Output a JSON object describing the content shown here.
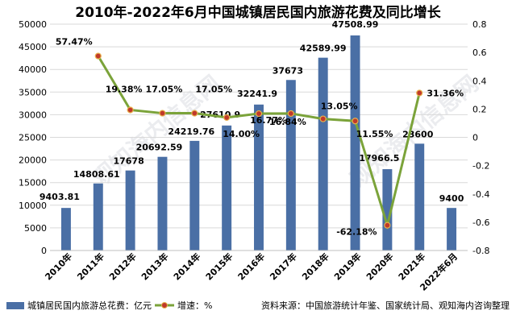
{
  "chart_data": {
    "type": "bar",
    "title": "2010年-2022年6月中国城镇居民国内旅游花费及同比增长",
    "categories": [
      "2010年",
      "2011年",
      "2012年",
      "2013年",
      "2014年",
      "2015年",
      "2016年",
      "2017年",
      "2018年",
      "2019年",
      "2020年",
      "2021年",
      "2022年6月"
    ],
    "series": [
      {
        "name": "城镇居民国内旅游总花费：亿元",
        "type": "bar",
        "axis": "left",
        "values": [
          9403.81,
          14808.61,
          17678,
          20692.59,
          24219.76,
          27610.9,
          32241.9,
          37673,
          42589.99,
          47508.99,
          17966.5,
          23600,
          9400
        ],
        "labels": [
          "9403.81",
          "14808.61",
          "17678",
          "20692.59",
          "24219.76",
          "27610.9",
          "32241.9",
          "37673",
          "42589.99",
          "47508.99",
          "17966.5",
          "23600",
          "9400"
        ]
      },
      {
        "name": "增速：%",
        "type": "line",
        "axis": "right",
        "values": [
          null,
          0.5747,
          0.1938,
          0.1705,
          0.1705,
          0.14,
          0.1677,
          0.1684,
          0.1305,
          0.1155,
          -0.6218,
          0.3136,
          null
        ],
        "labels": [
          null,
          "57.47%",
          "19.38%",
          "17.05%",
          "17.05%",
          "14.00%",
          "16.77%",
          "16.84%",
          "13.05%",
          "11.55%",
          "-62.18%",
          "31.36%",
          null
        ]
      }
    ],
    "y_left": {
      "min": 0,
      "max": 50000,
      "step": 5000
    },
    "y_right": {
      "min": -0.8,
      "max": 0.8,
      "step": 0.2
    },
    "legend_position": "bottom-left",
    "source_note": "资料来源：中国旅游统计年鉴、国家统计局、观知海内咨询整理",
    "watermark": "观知海内信息网",
    "colors": {
      "bar": "#4a6fa5",
      "line": "#7ba33a",
      "marker": "#c0392b",
      "grid": "#d9d9d9",
      "text": "#000000"
    }
  }
}
